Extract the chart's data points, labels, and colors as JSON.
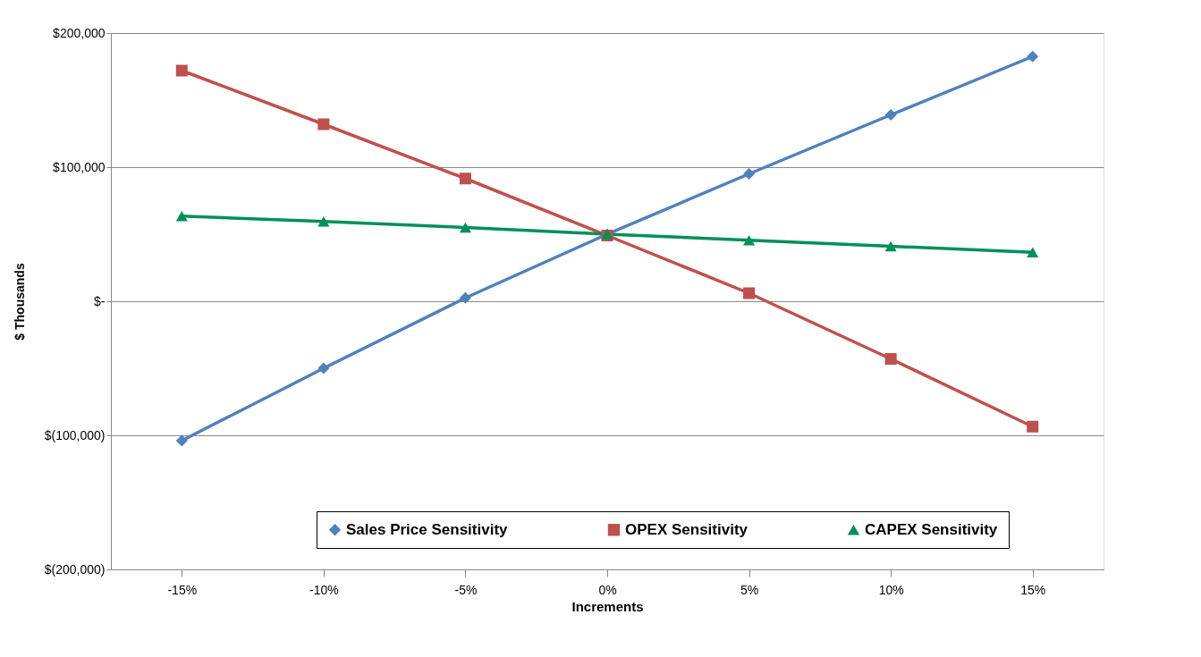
{
  "chart_data": {
    "type": "line",
    "xlabel": "Increments",
    "ylabel": "$ Thousands",
    "categories": [
      "-15%",
      "-10%",
      "-5%",
      "0%",
      "5%",
      "10%",
      "15%"
    ],
    "series": [
      {
        "name": "Sales Price Sensitivity",
        "color": "#4f81bd",
        "marker": "diamond",
        "values": [
          -104000,
          -50000,
          2500,
          50000,
          95000,
          139000,
          182500
        ]
      },
      {
        "name": "OPEX Sensitivity",
        "color": "#c0504d",
        "marker": "square",
        "values": [
          172000,
          132000,
          91500,
          49000,
          6000,
          -43000,
          -93500
        ]
      },
      {
        "name": "CAPEX Sensitivity",
        "color": "#00905a",
        "marker": "triangle",
        "values": [
          63500,
          59500,
          55000,
          50000,
          45500,
          41000,
          36500
        ]
      }
    ],
    "ylim": [
      -200000,
      200000
    ],
    "yticks": [
      {
        "value": -200000,
        "label": "$(200,000)"
      },
      {
        "value": -100000,
        "label": "$(100,000)"
      },
      {
        "value": 0,
        "label": "$-"
      },
      {
        "value": 100000,
        "label": "$100,000"
      },
      {
        "value": 200000,
        "label": "$200,000"
      }
    ],
    "grid": "y",
    "legend": "bottom",
    "line_style": "solid"
  }
}
